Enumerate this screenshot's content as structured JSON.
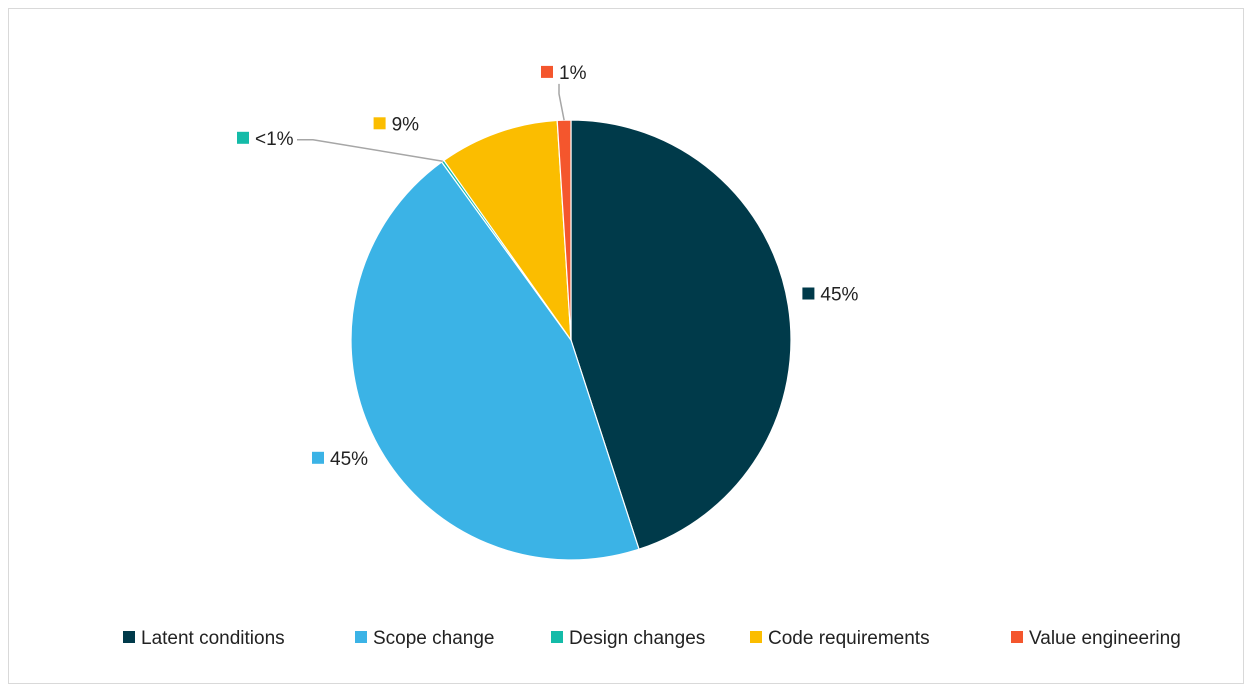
{
  "chart_data": {
    "type": "pie",
    "title": "",
    "start_angle_deg": 0,
    "direction": "clockwise",
    "slices": [
      {
        "name": "Latent conditions",
        "value": 45.0,
        "label": "45%",
        "color": "#003a4a"
      },
      {
        "name": "Scope change",
        "value": 45.0,
        "label": "45%",
        "color": "#3bb3e6"
      },
      {
        "name": "Design changes",
        "value": 0.2,
        "label": "<1%",
        "color": "#14bba8"
      },
      {
        "name": "Code requirements",
        "value": 8.8,
        "label": "9%",
        "color": "#fbbd00"
      },
      {
        "name": "Value engineering",
        "value": 1.0,
        "label": "1%",
        "color": "#f4562d"
      }
    ],
    "legend_position": "bottom"
  }
}
